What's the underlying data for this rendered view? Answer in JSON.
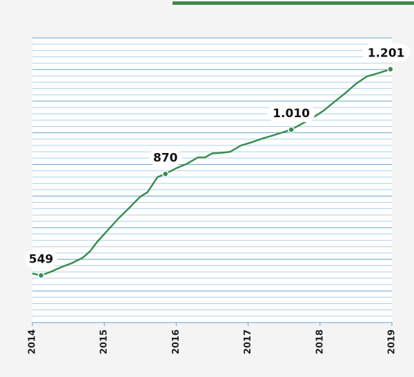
{
  "chart_data": {
    "type": "line",
    "x": [
      2014.0,
      2014.12,
      2014.25,
      2014.4,
      2014.55,
      2014.7,
      2014.8,
      2014.9,
      2015.0,
      2015.1,
      2015.2,
      2015.3,
      2015.4,
      2015.5,
      2015.6,
      2015.74,
      2015.85,
      2016.0,
      2016.15,
      2016.3,
      2016.4,
      2016.5,
      2016.6,
      2016.75,
      2016.9,
      2017.05,
      2017.2,
      2017.35,
      2017.6,
      2017.8,
      2017.95,
      2018.05,
      2018.2,
      2018.35,
      2018.5,
      2018.65,
      2018.8,
      2018.9,
      2018.98
    ],
    "values": [
      555,
      549,
      560,
      575,
      588,
      605,
      625,
      655,
      680,
      705,
      730,
      752,
      775,
      798,
      812,
      860,
      870,
      888,
      902,
      922,
      922,
      935,
      936,
      940,
      960,
      970,
      982,
      992,
      1010,
      1035,
      1055,
      1070,
      1098,
      1125,
      1155,
      1178,
      1188,
      1195,
      1201
    ],
    "value_labels": [
      null,
      "549",
      null,
      null,
      null,
      null,
      null,
      null,
      null,
      null,
      null,
      null,
      null,
      null,
      null,
      null,
      "870",
      null,
      null,
      null,
      null,
      null,
      null,
      null,
      null,
      null,
      null,
      null,
      "1.010",
      null,
      null,
      null,
      null,
      null,
      null,
      null,
      null,
      null,
      "1.201"
    ],
    "color": "#3a8a4f",
    "xlim": [
      2014,
      2019
    ],
    "xticks": [
      2014,
      2015,
      2016,
      2017,
      2018,
      2019
    ],
    "ylim": [
      400,
      1300
    ],
    "yticks": [
      400,
      500,
      600,
      700,
      800,
      900,
      1000,
      1100,
      1200,
      1300
    ],
    "minor_yticks": [
      420,
      440,
      460,
      480,
      520,
      540,
      560,
      580,
      620,
      640,
      660,
      680,
      720,
      740,
      760,
      780,
      820,
      840,
      860,
      880,
      920,
      940,
      960,
      980,
      1020,
      1040,
      1060,
      1080,
      1120,
      1140,
      1160,
      1180,
      1220,
      1240,
      1260,
      1280
    ],
    "grid": true
  }
}
